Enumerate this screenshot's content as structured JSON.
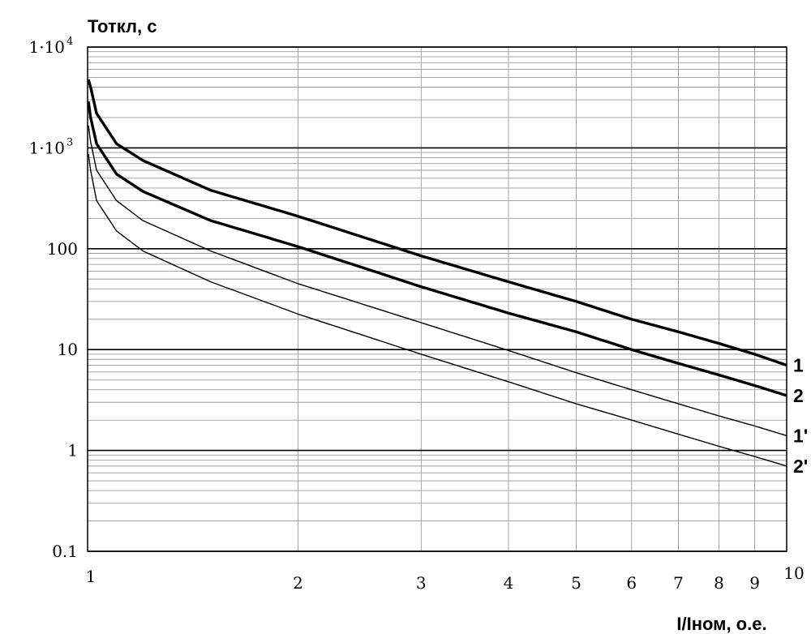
{
  "chart_data": {
    "type": "line",
    "title": "Тоткл, с",
    "xlabel": "I/Iном, о.е.",
    "ylabel": "Тоткл, с",
    "xscale": "log",
    "yscale": "log",
    "xlim": [
      1,
      10
    ],
    "ylim": [
      0.1,
      10000
    ],
    "grid": true,
    "x_ticks": [
      {
        "value": 1,
        "label": "1"
      },
      {
        "value": 2,
        "label": "2"
      },
      {
        "value": 3,
        "label": "3"
      },
      {
        "value": 4,
        "label": "4"
      },
      {
        "value": 5,
        "label": "5"
      },
      {
        "value": 6,
        "label": "6"
      },
      {
        "value": 7,
        "label": "7"
      },
      {
        "value": 8,
        "label": "8"
      },
      {
        "value": 9,
        "label": "9"
      },
      {
        "value": 10,
        "label": "10"
      }
    ],
    "y_ticks": [
      {
        "value": 0.1,
        "label": "0.1",
        "sup": ""
      },
      {
        "value": 1,
        "label": "1",
        "sup": ""
      },
      {
        "value": 10,
        "label": "10",
        "sup": ""
      },
      {
        "value": 100,
        "label": "100",
        "sup": ""
      },
      {
        "value": 1000,
        "label": "1·10",
        "sup": "3"
      },
      {
        "value": 10000,
        "label": "1·10",
        "sup": "4"
      }
    ],
    "series": [
      {
        "name": "1",
        "bold": true,
        "x": [
          1.01,
          1.03,
          1.1,
          1.2,
          1.5,
          2,
          3,
          4,
          5,
          6,
          7,
          8,
          9,
          10
        ],
        "y": [
          4000,
          2200,
          1100,
          750,
          380,
          210,
          85,
          47,
          30,
          20,
          15,
          11.5,
          9,
          7
        ]
      },
      {
        "name": "2",
        "bold": true,
        "x": [
          1.01,
          1.03,
          1.1,
          1.2,
          1.5,
          2,
          3,
          4,
          5,
          6,
          7,
          8,
          9,
          10
        ],
        "y": [
          2000,
          1100,
          550,
          370,
          190,
          105,
          42,
          23,
          15,
          10,
          7.3,
          5.6,
          4.4,
          3.5
        ]
      },
      {
        "name": "1'",
        "bold": false,
        "x": [
          1.01,
          1.03,
          1.1,
          1.2,
          1.5,
          2,
          3,
          4,
          5,
          6,
          7,
          8,
          9,
          10
        ],
        "y": [
          1150,
          600,
          300,
          190,
          95,
          45,
          18.5,
          9.8,
          5.9,
          4,
          2.9,
          2.2,
          1.75,
          1.4
        ]
      },
      {
        "name": "2'",
        "bold": false,
        "x": [
          1.01,
          1.03,
          1.1,
          1.2,
          1.5,
          2,
          3,
          4,
          5,
          6,
          7,
          8,
          9,
          10
        ],
        "y": [
          600,
          300,
          150,
          95,
          47,
          22.5,
          9,
          4.8,
          2.9,
          2,
          1.45,
          1.1,
          0.87,
          0.7
        ]
      }
    ],
    "curve_labels": [
      "1",
      "2",
      "1'",
      "2'"
    ]
  }
}
